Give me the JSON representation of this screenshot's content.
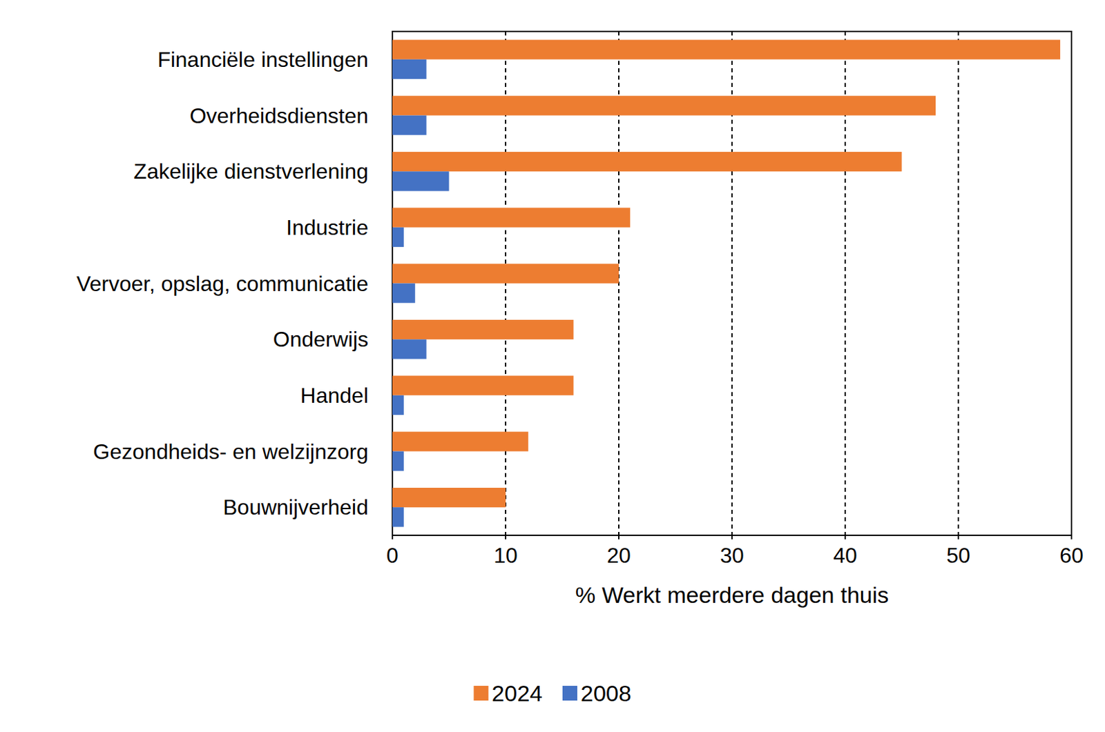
{
  "chart_data": {
    "type": "bar",
    "orientation": "horizontal",
    "x_label": "% Werkt meerdere dagen thuis",
    "categories": [
      "Financiële instellingen",
      "Overheidsdiensten",
      "Zakelijke dienstverlening",
      "Industrie",
      "Vervoer, opslag, communicatie",
      "Onderwijs",
      "Handel",
      "Gezondheids- en welzijnzorg",
      "Bouwnijverheid"
    ],
    "series": [
      {
        "name": "2024",
        "color": "#ed7d31",
        "values": [
          59,
          48,
          45,
          21,
          20,
          16,
          16,
          12,
          10
        ]
      },
      {
        "name": "2008",
        "color": "#4472c4",
        "values": [
          3,
          3,
          5,
          1,
          2,
          3,
          1,
          1,
          1
        ]
      }
    ],
    "xlim": [
      0,
      60
    ],
    "xticks": [
      0,
      10,
      20,
      30,
      40,
      50,
      60
    ],
    "grid": true,
    "legend": "bottom"
  }
}
